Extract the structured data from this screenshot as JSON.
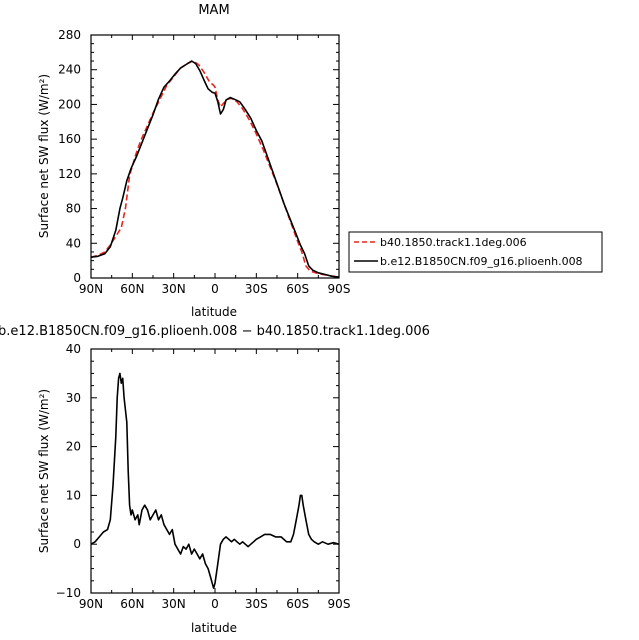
{
  "chart_data": [
    {
      "type": "line",
      "title": "MAM",
      "xlabel": "latitude",
      "ylabel": "Surface net SW flux (W/m²)",
      "x_ticks": [
        "90N",
        "60N",
        "30N",
        "0",
        "30S",
        "60S",
        "90S"
      ],
      "x_tick_values": [
        90,
        60,
        30,
        0,
        -30,
        -60,
        -90
      ],
      "xlim": [
        90,
        -90
      ],
      "ylim": [
        0,
        280
      ],
      "y_ticks": [
        0,
        40,
        80,
        120,
        160,
        200,
        240,
        280
      ],
      "legend_position": "right",
      "series": [
        {
          "name": "b40.1850.track1.1deg.006",
          "color": "#e8261e",
          "dash": "dashed",
          "points": [
            [
              90,
              24
            ],
            [
              85,
              26
            ],
            [
              80,
              30
            ],
            [
              76,
              38
            ],
            [
              72,
              48
            ],
            [
              68,
              58
            ],
            [
              65,
              80
            ],
            [
              62,
              118
            ],
            [
              58,
              140
            ],
            [
              54,
              158
            ],
            [
              50,
              172
            ],
            [
              45,
              190
            ],
            [
              40,
              206
            ],
            [
              35,
              222
            ],
            [
              30,
              232
            ],
            [
              25,
              242
            ],
            [
              20,
              247
            ],
            [
              16,
              250
            ],
            [
              12,
              246
            ],
            [
              8,
              237
            ],
            [
              4,
              226
            ],
            [
              1,
              222
            ],
            [
              0,
              220
            ],
            [
              -2,
              205
            ],
            [
              -4,
              197
            ],
            [
              -6,
              201
            ],
            [
              -9,
              206
            ],
            [
              -12,
              207
            ],
            [
              -16,
              203
            ],
            [
              -20,
              195
            ],
            [
              -25,
              182
            ],
            [
              -30,
              166
            ],
            [
              -35,
              148
            ],
            [
              -40,
              128
            ],
            [
              -45,
              108
            ],
            [
              -50,
              86
            ],
            [
              -55,
              64
            ],
            [
              -60,
              42
            ],
            [
              -63,
              30
            ],
            [
              -66,
              14
            ],
            [
              -69,
              8
            ],
            [
              -75,
              5
            ],
            [
              -82,
              3
            ],
            [
              -90,
              1
            ]
          ]
        },
        {
          "name": "b.e12.B1850CN.f09_g16.plioenh.008",
          "color": "#000000",
          "dash": "solid",
          "points": [
            [
              90,
              24
            ],
            [
              85,
              25
            ],
            [
              80,
              28
            ],
            [
              76,
              36
            ],
            [
              72,
              55
            ],
            [
              69,
              80
            ],
            [
              67,
              92
            ],
            [
              64,
              112
            ],
            [
              61,
              126
            ],
            [
              57,
              140
            ],
            [
              53,
              156
            ],
            [
              49,
              172
            ],
            [
              45,
              188
            ],
            [
              41,
              206
            ],
            [
              37,
              220
            ],
            [
              33,
              227
            ],
            [
              29,
              235
            ],
            [
              25,
              242
            ],
            [
              21,
              246
            ],
            [
              17,
              250
            ],
            [
              14,
              247
            ],
            [
              11,
              239
            ],
            [
              8,
              228
            ],
            [
              5,
              218
            ],
            [
              2,
              214
            ],
            [
              0,
              213
            ],
            [
              -2,
              203
            ],
            [
              -4,
              189
            ],
            [
              -6,
              194
            ],
            [
              -8,
              205
            ],
            [
              -11,
              208
            ],
            [
              -14,
              206
            ],
            [
              -18,
              203
            ],
            [
              -22,
              194
            ],
            [
              -26,
              184
            ],
            [
              -30,
              170
            ],
            [
              -34,
              158
            ],
            [
              -38,
              140
            ],
            [
              -42,
              122
            ],
            [
              -46,
              104
            ],
            [
              -50,
              86
            ],
            [
              -54,
              70
            ],
            [
              -58,
              54
            ],
            [
              -62,
              38
            ],
            [
              -65,
              28
            ],
            [
              -68,
              14
            ],
            [
              -71,
              9
            ],
            [
              -75,
              6
            ],
            [
              -80,
              4
            ],
            [
              -85,
              2
            ],
            [
              -90,
              1
            ]
          ]
        }
      ]
    },
    {
      "type": "line",
      "title": "b.e12.B1850CN.f09_g16.plioenh.008 − b40.1850.track1.1deg.006",
      "xlabel": "latitude",
      "ylabel": "Surface net SW flux (W/m²)",
      "x_ticks": [
        "90N",
        "60N",
        "30N",
        "0",
        "30S",
        "60S",
        "90S"
      ],
      "x_tick_values": [
        90,
        60,
        30,
        0,
        -30,
        -60,
        -90
      ],
      "xlim": [
        90,
        -90
      ],
      "ylim": [
        -10,
        40
      ],
      "y_ticks": [
        -10,
        0,
        10,
        20,
        30,
        40
      ],
      "series": [
        {
          "color": "#000000",
          "dash": "solid",
          "points": [
            [
              90,
              0
            ],
            [
              87,
              0.5
            ],
            [
              84,
              1.5
            ],
            [
              81,
              2.5
            ],
            [
              78,
              3
            ],
            [
              76,
              5
            ],
            [
              74,
              12
            ],
            [
              72,
              22
            ],
            [
              71,
              30
            ],
            [
              70,
              34
            ],
            [
              69,
              35
            ],
            [
              68,
              33
            ],
            [
              67,
              34
            ],
            [
              66,
              30
            ],
            [
              64,
              25
            ],
            [
              63,
              15
            ],
            [
              62,
              8
            ],
            [
              61,
              6
            ],
            [
              60,
              7
            ],
            [
              58,
              5
            ],
            [
              56,
              6
            ],
            [
              55,
              4
            ],
            [
              53,
              7
            ],
            [
              51,
              8
            ],
            [
              49,
              7
            ],
            [
              47,
              5
            ],
            [
              45,
              6
            ],
            [
              43,
              7
            ],
            [
              41,
              5
            ],
            [
              39,
              6
            ],
            [
              37,
              4
            ],
            [
              35,
              3
            ],
            [
              33,
              2
            ],
            [
              31,
              3
            ],
            [
              29,
              0
            ],
            [
              27,
              -1
            ],
            [
              25,
              -2
            ],
            [
              23,
              -0.5
            ],
            [
              21,
              -1
            ],
            [
              19,
              0
            ],
            [
              17,
              -2
            ],
            [
              15,
              -1
            ],
            [
              13,
              -2
            ],
            [
              11,
              -3
            ],
            [
              9,
              -2
            ],
            [
              7,
              -4
            ],
            [
              5,
              -5
            ],
            [
              3,
              -7
            ],
            [
              2,
              -8
            ],
            [
              1,
              -9
            ],
            [
              0,
              -8
            ],
            [
              -1,
              -6
            ],
            [
              -2,
              -4
            ],
            [
              -4,
              0
            ],
            [
              -6,
              1
            ],
            [
              -8,
              1.5
            ],
            [
              -10,
              1
            ],
            [
              -12,
              0.5
            ],
            [
              -14,
              1
            ],
            [
              -16,
              0.5
            ],
            [
              -18,
              0
            ],
            [
              -20,
              0.5
            ],
            [
              -22,
              0
            ],
            [
              -24,
              -0.5
            ],
            [
              -26,
              0
            ],
            [
              -28,
              0.5
            ],
            [
              -30,
              1
            ],
            [
              -33,
              1.5
            ],
            [
              -36,
              2
            ],
            [
              -40,
              2
            ],
            [
              -44,
              1.5
            ],
            [
              -48,
              1.5
            ],
            [
              -52,
              0.5
            ],
            [
              -55,
              0.5
            ],
            [
              -57,
              2
            ],
            [
              -59,
              5
            ],
            [
              -61,
              8
            ],
            [
              -62,
              10
            ],
            [
              -63,
              10
            ],
            [
              -64,
              8
            ],
            [
              -66,
              5
            ],
            [
              -68,
              2
            ],
            [
              -70,
              1
            ],
            [
              -72,
              0.5
            ],
            [
              -75,
              0
            ],
            [
              -78,
              0.5
            ],
            [
              -82,
              0
            ],
            [
              -86,
              0.3
            ],
            [
              -90,
              0
            ]
          ]
        }
      ]
    }
  ]
}
